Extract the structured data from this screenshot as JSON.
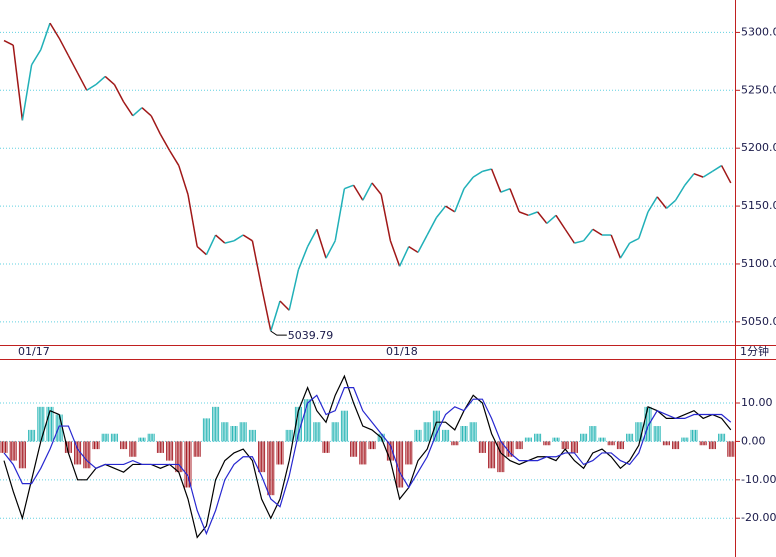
{
  "chart_data": [
    {
      "type": "line",
      "categories": [
        "01/17",
        null,
        null,
        null,
        null,
        null,
        null,
        null,
        null,
        null,
        null,
        null,
        null,
        null,
        null,
        null,
        null,
        null,
        null,
        null,
        null,
        null,
        null,
        null,
        null,
        null,
        null,
        null,
        null,
        null,
        null,
        null,
        null,
        null,
        null,
        null,
        null,
        null,
        null,
        null,
        "01/18",
        null,
        null,
        null,
        null,
        null,
        null,
        null,
        null,
        null,
        null,
        null,
        null,
        null,
        null,
        null,
        null,
        null,
        null,
        null,
        null,
        null,
        null,
        null,
        null,
        null,
        null,
        null,
        null,
        null,
        null,
        null,
        null,
        null,
        null,
        null,
        null,
        null,
        null,
        null
      ],
      "values": [
        5293,
        5289,
        5224,
        5272,
        5285,
        5308,
        5295,
        5280,
        5265,
        5250,
        5255,
        5262,
        5255,
        5240,
        5228,
        5235,
        5228,
        5212,
        5198,
        5185,
        5160,
        5115,
        5108,
        5125,
        5118,
        5120,
        5125,
        5120,
        5080,
        5042,
        5068,
        5060,
        5095,
        5115,
        5130,
        5105,
        5120,
        5165,
        5168,
        5155,
        5170,
        5160,
        5120,
        5098,
        5115,
        5110,
        5125,
        5140,
        5150,
        5145,
        5165,
        5175,
        5180,
        5182,
        5162,
        5165,
        5145,
        5142,
        5145,
        5135,
        5142,
        5130,
        5118,
        5120,
        5130,
        5125,
        5125,
        5105,
        5118,
        5122,
        5145,
        5158,
        5148,
        5155,
        5168,
        5178,
        5175,
        5180,
        5185,
        5170
      ],
      "up_color": "#20b0b8",
      "down_color": "#a01818",
      "ylim": [
        5030,
        5328
      ],
      "yticks": [
        {
          "value": 5050,
          "label": "5050.00"
        },
        {
          "value": 5100,
          "label": "5100.00"
        },
        {
          "value": 5150,
          "label": "5150.00"
        },
        {
          "value": 5200,
          "label": "5200.00"
        },
        {
          "value": 5250,
          "label": "5250.00"
        },
        {
          "value": 5300,
          "label": "5300.00"
        }
      ],
      "grid": true,
      "annotation": "5039.79",
      "period": "1分钟"
    },
    {
      "type": "macd",
      "histogram": [
        -3,
        -5,
        -7,
        3,
        9,
        9,
        7,
        -3,
        -6,
        -7,
        -2,
        2,
        2,
        -2,
        -4,
        1,
        2,
        -3,
        -5,
        -8,
        -12,
        -4,
        6,
        9,
        5,
        4,
        5,
        3,
        -8,
        -14,
        -6,
        3,
        9,
        11,
        5,
        -3,
        5,
        8,
        -4,
        -6,
        -2,
        2,
        -5,
        -12,
        -6,
        3,
        5,
        8,
        3,
        -1,
        4,
        5,
        -3,
        -7,
        -8,
        -4,
        -2,
        1,
        2,
        -1,
        1,
        -2,
        -3,
        2,
        4,
        1,
        -1,
        -2,
        2,
        5,
        9,
        4,
        -1,
        -2,
        1,
        3,
        -1,
        -2,
        2,
        -4
      ],
      "up_color": "#30b8b8",
      "down_color": "#a82028",
      "series": [
        {
          "color": "#000000",
          "values": [
            -5,
            -13,
            -20,
            -10,
            0,
            8,
            7,
            -3,
            -10,
            -10,
            -7,
            -6,
            -7,
            -8,
            -6,
            -6,
            -6,
            -7,
            -6,
            -8,
            -15,
            -25,
            -22,
            -10,
            -5,
            -3,
            -2,
            -5,
            -15,
            -20,
            -15,
            -5,
            8,
            14,
            8,
            5,
            12,
            17,
            10,
            4,
            3,
            1,
            -5,
            -15,
            -12,
            -5,
            -2,
            5,
            5,
            3,
            8,
            12,
            10,
            2,
            -3,
            -5,
            -6,
            -5,
            -4,
            -4,
            -5,
            -2,
            -5,
            -7,
            -3,
            -2,
            -4,
            -7,
            -5,
            -1,
            9,
            8,
            6,
            6,
            7,
            8,
            6,
            7,
            6,
            3
          ]
        },
        {
          "color": "#2828d0",
          "values": [
            -3,
            -6,
            -11,
            -11,
            -7,
            -2,
            4,
            4,
            -2,
            -5,
            -7,
            -6,
            -6,
            -6,
            -5,
            -6,
            -6,
            -6,
            -6,
            -6,
            -9,
            -18,
            -24,
            -18,
            -10,
            -6,
            -4,
            -4,
            -9,
            -15,
            -17,
            -9,
            2,
            10,
            12,
            7,
            8,
            14,
            14,
            8,
            5,
            2,
            -1,
            -8,
            -12,
            -8,
            -4,
            2,
            7,
            9,
            8,
            11,
            11,
            6,
            0,
            -3,
            -5,
            -5,
            -5,
            -4,
            -4,
            -3,
            -3,
            -6,
            -5,
            -3,
            -3,
            -5,
            -6,
            -3,
            4,
            8,
            7,
            6,
            6,
            7,
            7,
            7,
            7,
            5
          ]
        }
      ],
      "ylim": [
        -30.1,
        21.2
      ],
      "yticks": [
        {
          "value": -20,
          "label": "-20.00"
        },
        {
          "value": -10,
          "label": "-10.00"
        },
        {
          "value": 0,
          "label": "0.00"
        },
        {
          "value": 10,
          "label": "10.00"
        }
      ],
      "grid": true
    }
  ]
}
